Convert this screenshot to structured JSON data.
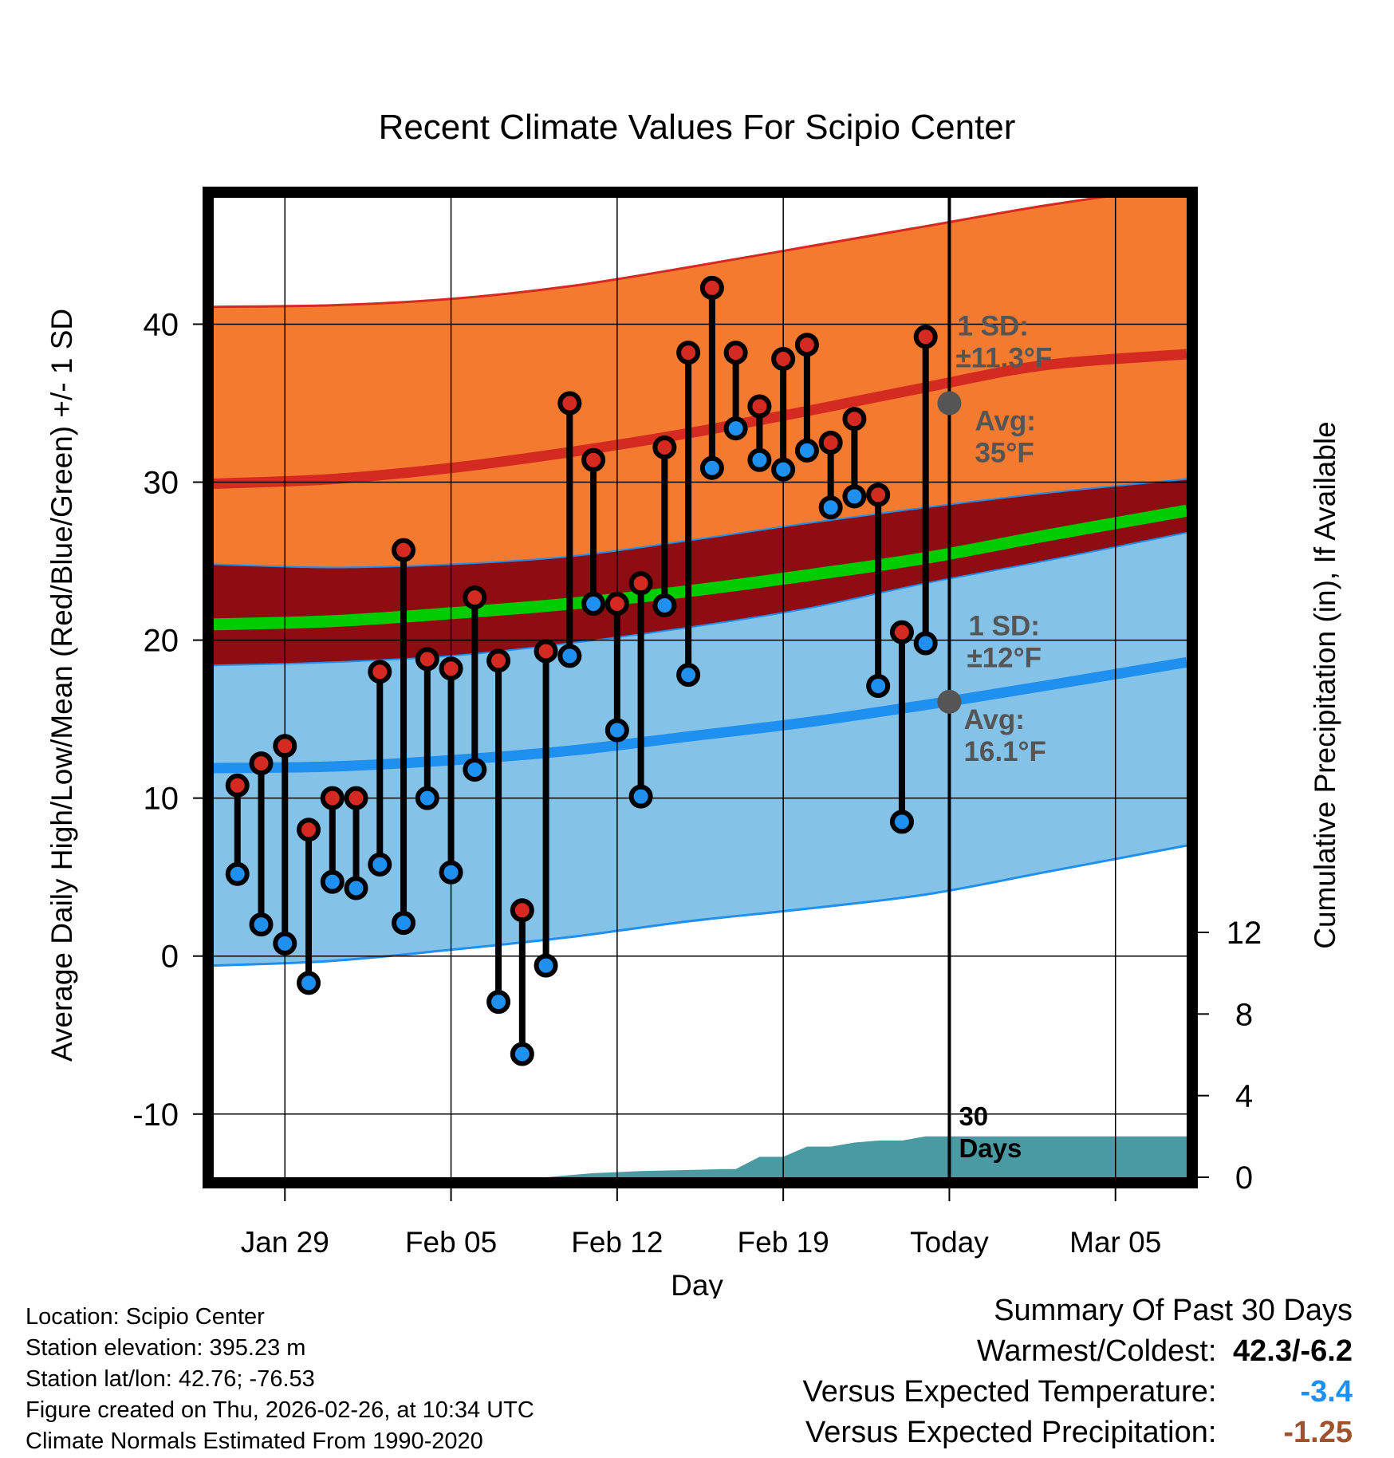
{
  "chart_data": {
    "type": "line",
    "title": "Recent Climate Values For Scipio Center",
    "xlabel": "Day",
    "ylabel": "Average Daily High/Low/Mean (Red/Blue/Green) +/- 1 SD",
    "y2label": "Cumulative Precipitation (in), If Available",
    "ylim": [
      -14,
      48
    ],
    "y2lim": [
      0,
      48
    ],
    "yticks": [
      -10,
      0,
      10,
      20,
      30,
      40
    ],
    "y2ticks": [
      0,
      4,
      8,
      12
    ],
    "xticks": [
      {
        "day": 3,
        "label": "Jan 29"
      },
      {
        "day": 10,
        "label": "Feb 05"
      },
      {
        "day": 17,
        "label": "Feb 12"
      },
      {
        "day": 24,
        "label": "Feb 19"
      },
      {
        "day": 31,
        "label": "Today"
      },
      {
        "day": 38,
        "label": "Mar 05"
      }
    ],
    "xlim": [
      0,
      41
    ],
    "today_day": 31,
    "period_label": "30 Days",
    "normals": {
      "day": [
        0,
        5,
        10,
        15,
        20,
        25,
        30,
        35,
        41
      ],
      "high_avg": [
        29.9,
        30.2,
        30.9,
        31.9,
        33.1,
        34.5,
        36.0,
        37.4,
        38.1
      ],
      "high_upper": [
        41.1,
        41.2,
        41.6,
        42.4,
        43.6,
        44.9,
        46.2,
        47.5,
        48.8
      ],
      "high_lower": [
        24.8,
        24.6,
        24.8,
        25.3,
        26.3,
        27.4,
        28.4,
        29.3,
        30.2
      ],
      "mean_avg": [
        21.0,
        21.2,
        21.7,
        22.3,
        23.1,
        24.1,
        25.2,
        26.6,
        28.2
      ],
      "low_avg": [
        11.9,
        12.0,
        12.4,
        13.0,
        13.9,
        14.8,
        15.9,
        17.1,
        18.6
      ],
      "low_upper": [
        18.4,
        18.6,
        19.0,
        19.8,
        20.8,
        22.0,
        23.6,
        25.0,
        26.8
      ],
      "low_lower": [
        -0.6,
        -0.3,
        0.4,
        1.2,
        2.2,
        3.0,
        3.9,
        5.3,
        7.0
      ]
    },
    "annotations": {
      "high_sd": "1 SD:",
      "high_sd_val": "±11.3°F",
      "high_avg": "Avg:",
      "high_avg_val": "35°F",
      "high_avg_value": 35,
      "low_sd": "1 SD:",
      "low_sd_val": "±12°F",
      "low_avg": "Avg:",
      "low_avg_val": "16.1°F",
      "low_avg_value": 16.1
    },
    "observations": [
      {
        "day": 1,
        "high": 10.8,
        "low": 5.2
      },
      {
        "day": 2,
        "high": 12.2,
        "low": 2.0
      },
      {
        "day": 3,
        "high": 13.3,
        "low": 0.8
      },
      {
        "day": 4,
        "high": 8.0,
        "low": -1.7
      },
      {
        "day": 5,
        "high": 10.0,
        "low": 4.7
      },
      {
        "day": 6,
        "high": 10.0,
        "low": 4.3
      },
      {
        "day": 7,
        "high": 18.0,
        "low": 5.8
      },
      {
        "day": 8,
        "high": 25.7,
        "low": 2.1
      },
      {
        "day": 9,
        "high": 18.8,
        "low": 10.0
      },
      {
        "day": 10,
        "high": 18.2,
        "low": 5.3
      },
      {
        "day": 11,
        "high": 22.7,
        "low": 11.8
      },
      {
        "day": 12,
        "high": 18.7,
        "low": -2.9
      },
      {
        "day": 13,
        "high": 2.9,
        "low": -6.2
      },
      {
        "day": 14,
        "high": 19.3,
        "low": -0.6
      },
      {
        "day": 15,
        "high": 35.0,
        "low": 19.0
      },
      {
        "day": 16,
        "high": 31.4,
        "low": 22.3
      },
      {
        "day": 17,
        "high": 22.3,
        "low": 14.3
      },
      {
        "day": 18,
        "high": 23.6,
        "low": 10.1
      },
      {
        "day": 19,
        "high": 32.2,
        "low": 22.2
      },
      {
        "day": 20,
        "high": 38.2,
        "low": 17.8
      },
      {
        "day": 21,
        "high": 42.3,
        "low": 30.9
      },
      {
        "day": 22,
        "high": 38.2,
        "low": 33.4
      },
      {
        "day": 23,
        "high": 34.8,
        "low": 31.4
      },
      {
        "day": 24,
        "high": 37.8,
        "low": 30.8
      },
      {
        "day": 25,
        "high": 38.7,
        "low": 32.0
      },
      {
        "day": 26,
        "high": 32.5,
        "low": 28.4
      },
      {
        "day": 27,
        "high": 34.0,
        "low": 29.1
      },
      {
        "day": 28,
        "high": 29.2,
        "low": 17.1
      },
      {
        "day": 29,
        "high": 20.5,
        "low": 8.5
      },
      {
        "day": 30,
        "high": 39.2,
        "low": 19.8
      }
    ],
    "precipitation": {
      "day": [
        14,
        15,
        16,
        18,
        21.5,
        22,
        23,
        24,
        25,
        26,
        27,
        28,
        29,
        30,
        41
      ],
      "cumulative": [
        0.0,
        0.1,
        0.2,
        0.3,
        0.4,
        0.4,
        1.0,
        1.0,
        1.5,
        1.5,
        1.7,
        1.8,
        1.8,
        2.0,
        2.0
      ]
    }
  },
  "info": {
    "location": "Location: Scipio Center",
    "elevation": "Station elevation: 395.23 m",
    "latlon": "Station lat/lon: 42.76; -76.53",
    "created": "Figure created on Thu, 2026-02-26, at 10:34 UTC",
    "normals": "Climate Normals Estimated From 1990-2020"
  },
  "summary": {
    "title": "Summary Of Past 30 Days",
    "warmest_label": "Warmest/Coldest:",
    "warmest_value": "42.3/-6.2",
    "temp_label": "Versus Expected Temperature:",
    "temp_value": "-3.4",
    "precip_label": "Versus Expected Precipitation:",
    "precip_value": "-1.25"
  },
  "colors": {
    "high_band": "#f47a30",
    "high_line": "#d42a22",
    "mean_band": "#8e0d12",
    "mean_line": "#00cc00",
    "low_band": "#85c2e8",
    "low_line": "#1f8ff0",
    "precip": "#4a9aa3",
    "high_dot": "#d42a22",
    "low_dot": "#1f8ff0",
    "annotation": "#555555",
    "temp_anomaly": "#1f8ff0",
    "precip_anomaly": "#a0522d"
  }
}
